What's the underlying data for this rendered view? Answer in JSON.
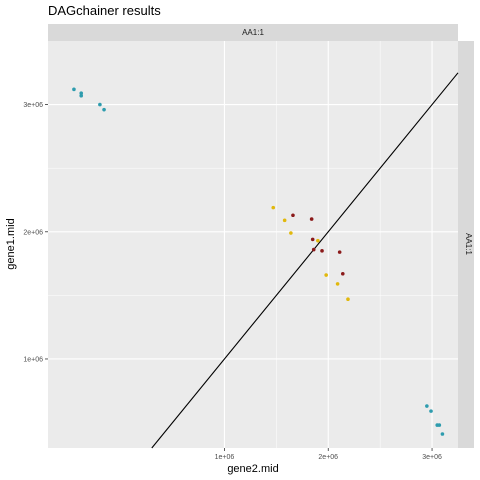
{
  "chart_data": {
    "type": "scatter",
    "title": "DAGchainer results",
    "xlabel": "gene2.mid",
    "ylabel": "gene1.mid",
    "facet_top": "AA1:1",
    "facet_right": "AA1:1",
    "xlim": [
      -700000,
      3250000
    ],
    "ylim": [
      300000,
      3500000
    ],
    "x_ticks": [
      1000000,
      2000000,
      3000000
    ],
    "x_tick_labels": [
      "1e+06",
      "2e+06",
      "3e+06"
    ],
    "y_ticks": [
      1000000,
      2000000,
      3000000
    ],
    "y_tick_labels": [
      "1e+06",
      "2e+06",
      "3e+06"
    ],
    "grid": true,
    "reference_line": {
      "type": "diagonal",
      "color": "#000000"
    },
    "series": [
      {
        "color": "#2E9CAE",
        "points": [
          [
            -450000,
            3120000
          ],
          [
            -380000,
            3090000
          ],
          [
            -380000,
            3070000
          ],
          [
            -200000,
            3000000
          ],
          [
            -160000,
            2960000
          ],
          [
            2950000,
            630000
          ],
          [
            2990000,
            590000
          ],
          [
            3050000,
            480000
          ],
          [
            3070000,
            480000
          ],
          [
            3100000,
            410000
          ]
        ]
      },
      {
        "color": "#E1B80D",
        "points": [
          [
            1470000,
            2190000
          ],
          [
            1580000,
            2090000
          ],
          [
            1640000,
            1990000
          ],
          [
            1900000,
            1930000
          ],
          [
            1980000,
            1660000
          ],
          [
            2090000,
            1590000
          ],
          [
            2190000,
            1470000
          ]
        ]
      },
      {
        "color": "#8B1A1A",
        "points": [
          [
            1660000,
            2130000
          ],
          [
            1840000,
            2100000
          ],
          [
            1850000,
            1940000
          ],
          [
            1860000,
            1860000
          ],
          [
            1940000,
            1850000
          ],
          [
            2110000,
            1840000
          ],
          [
            2140000,
            1670000
          ]
        ]
      }
    ]
  }
}
